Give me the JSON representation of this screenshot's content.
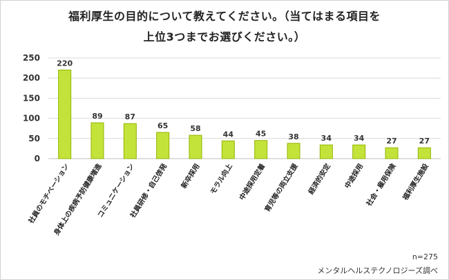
{
  "title_line1": "福利厚生の目的について教えてください。（当てはまる項目を",
  "title_line2": "上位3つまでお選びください。）",
  "sample_size": "n=275",
  "source": "メンタルヘルステクノロジーズ調べ",
  "colors": {
    "bar": "#c4e33a",
    "bar_edge": "#8fb300",
    "grid": "#d9d9d9"
  },
  "chart_data": {
    "type": "bar",
    "title": "福利厚生の目的について教えてください。（当てはまる項目を上位3つまでお選びください。）",
    "categories": [
      "社員のモチベーション",
      "身体上の疾病予防健康増進",
      "コミュニケーション",
      "社員研修・自己啓発",
      "新卒採用",
      "モラル向上",
      "中途採用定着",
      "育児等の両立支援",
      "経済的安定",
      "中途採用",
      "社会・雇用保険",
      "福利厚生施設"
    ],
    "values": [
      220,
      89,
      87,
      65,
      58,
      44,
      45,
      38,
      34,
      34,
      27,
      27
    ],
    "ylim": [
      0,
      250
    ],
    "yticks": [
      0,
      50,
      100,
      150,
      200,
      250
    ],
    "grid": true,
    "legend": "none"
  }
}
